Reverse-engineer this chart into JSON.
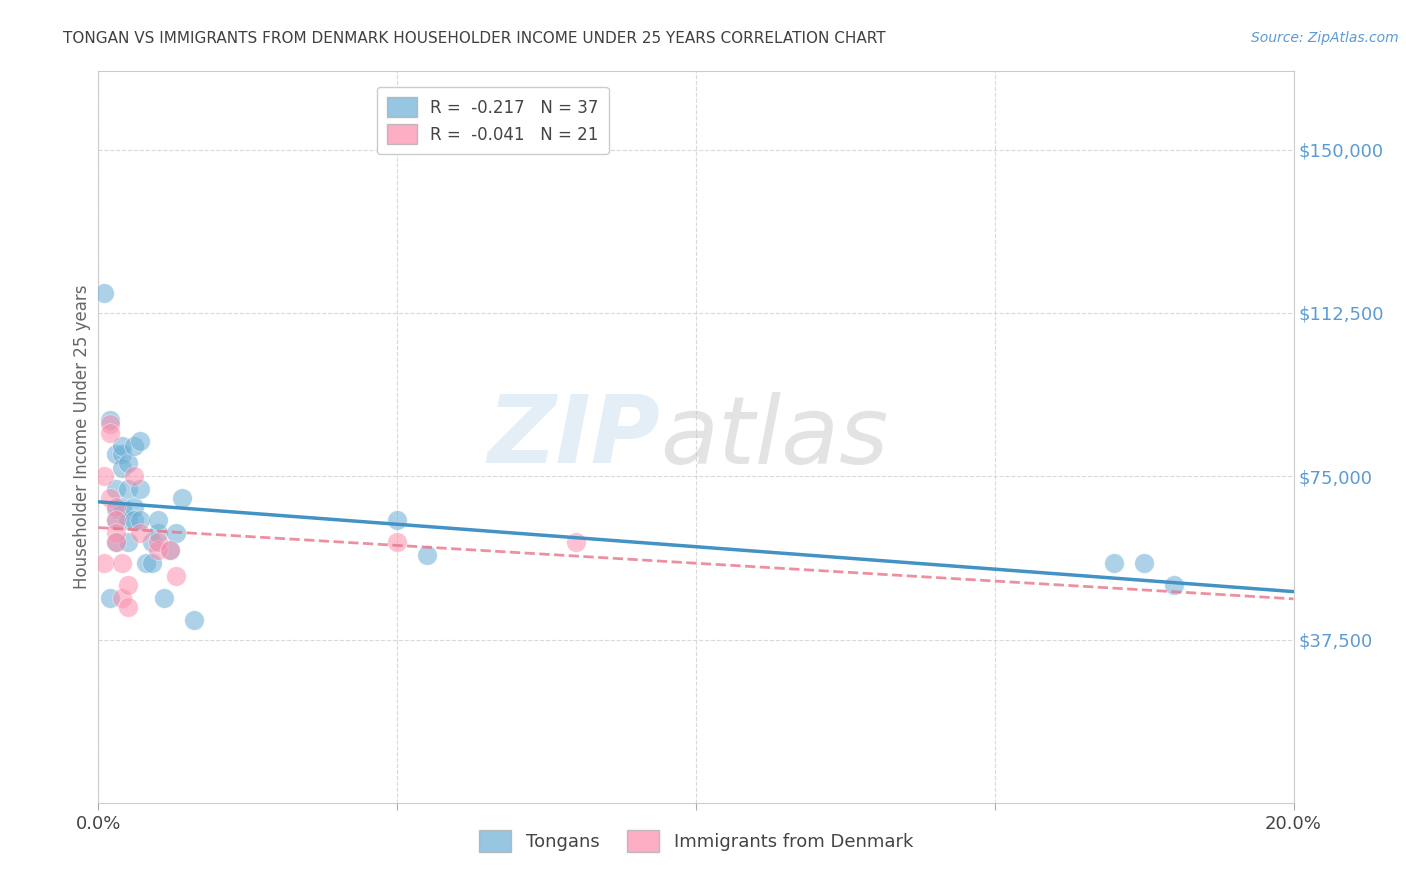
{
  "title": "TONGAN VS IMMIGRANTS FROM DENMARK HOUSEHOLDER INCOME UNDER 25 YEARS CORRELATION CHART",
  "source": "Source: ZipAtlas.com",
  "ylabel": "Householder Income Under 25 years",
  "xlim": [
    0.0,
    0.2
  ],
  "ylim": [
    0,
    168000
  ],
  "yticks": [
    37500,
    75000,
    112500,
    150000
  ],
  "ytick_labels": [
    "$37,500",
    "$75,000",
    "$112,500",
    "$150,000"
  ],
  "xticks": [
    0.0,
    0.05,
    0.1,
    0.15,
    0.2
  ],
  "xtick_labels": [
    "0.0%",
    "",
    "",
    "",
    "20.0%"
  ],
  "legend1_label": "R =  -0.217   N = 37",
  "legend2_label": "R =  -0.041   N = 21",
  "tongan_color": "#6baed6",
  "denmark_color": "#fc8eac",
  "watermark_zip": "ZIP",
  "watermark_atlas": "atlas",
  "tongan_x": [
    0.001,
    0.002,
    0.003,
    0.003,
    0.003,
    0.003,
    0.003,
    0.004,
    0.004,
    0.004,
    0.004,
    0.005,
    0.005,
    0.005,
    0.005,
    0.006,
    0.006,
    0.006,
    0.007,
    0.007,
    0.007,
    0.008,
    0.009,
    0.009,
    0.01,
    0.01,
    0.011,
    0.012,
    0.013,
    0.014,
    0.016,
    0.05,
    0.055,
    0.17,
    0.175,
    0.18,
    0.002
  ],
  "tongan_y": [
    117000,
    88000,
    65000,
    67500,
    80000,
    72000,
    60000,
    80000,
    82000,
    77000,
    68000,
    78000,
    65000,
    60000,
    72000,
    82000,
    68000,
    65000,
    83000,
    72000,
    65000,
    55000,
    60000,
    55000,
    62000,
    65000,
    47000,
    58000,
    62000,
    70000,
    42000,
    65000,
    57000,
    55000,
    55000,
    50000,
    47000
  ],
  "denmark_x": [
    0.001,
    0.001,
    0.002,
    0.002,
    0.002,
    0.003,
    0.003,
    0.003,
    0.003,
    0.004,
    0.004,
    0.005,
    0.005,
    0.006,
    0.007,
    0.01,
    0.01,
    0.012,
    0.013,
    0.05,
    0.08
  ],
  "denmark_y": [
    75000,
    55000,
    87000,
    85000,
    70000,
    68000,
    65000,
    62000,
    60000,
    55000,
    47000,
    45000,
    50000,
    75000,
    62000,
    58000,
    60000,
    58000,
    52000,
    60000,
    60000
  ],
  "background_color": "#ffffff",
  "grid_color": "#d5d5d5",
  "axis_color": "#cccccc",
  "yticklabel_color": "#5b9bd5",
  "title_color": "#404040",
  "source_color": "#5b9bd5",
  "ylabel_color": "#666666"
}
